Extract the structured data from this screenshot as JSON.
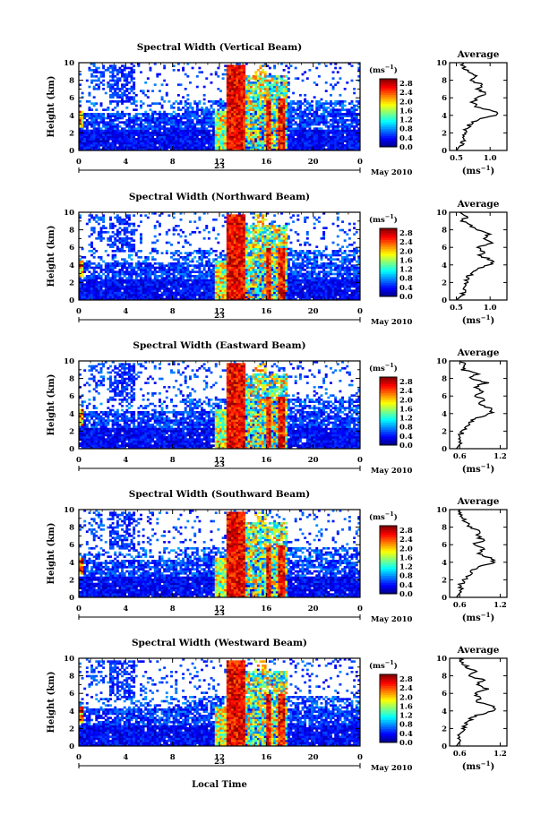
{
  "chart_data": [
    {
      "type": "heatmap",
      "title": "Spectral Width (Vertical Beam)",
      "ylabel": "Height (km)",
      "xticks": [
        "0",
        "4",
        "8",
        "12",
        "16",
        "20",
        "0"
      ],
      "date_label": "23",
      "month_label": "May 2010",
      "xlim": [
        0,
        24
      ],
      "ylim": [
        0,
        10
      ],
      "yticks": [
        "0",
        "2",
        "4",
        "6",
        "8",
        "10"
      ],
      "colorbar": {
        "unit": "(ms",
        "unit_exp": "−1",
        "unit_close": ")",
        "range": [
          0,
          3.0
        ],
        "labels": [
          "0.0",
          "0.4",
          "0.8",
          "1.2",
          "1.6",
          "2.0",
          "2.4",
          "2.8"
        ]
      },
      "profile": {
        "title": "Average",
        "xlabel": "(ms",
        "xlabel_exp": "−1",
        "xlabel_close": ")",
        "xticks": [
          "0.5",
          "1.0"
        ],
        "xlim": [
          0.4,
          1.25
        ],
        "height_km": [
          0,
          0.5,
          1,
          1.5,
          2,
          2.5,
          3,
          3.5,
          4,
          4.5,
          5,
          5.5,
          6,
          6.5,
          7,
          7.5,
          8,
          8.5,
          9,
          9.5,
          10
        ],
        "width_ms": [
          0.5,
          0.55,
          0.6,
          0.6,
          0.62,
          0.66,
          0.7,
          0.8,
          1.1,
          1.05,
          0.8,
          0.75,
          0.8,
          0.95,
          0.8,
          0.9,
          0.7,
          0.8,
          0.65,
          0.6,
          0.6
        ]
      }
    },
    {
      "type": "heatmap",
      "title": "Spectral Width (Northward Beam)",
      "ylabel": "Height (km)",
      "xticks": [
        "0",
        "4",
        "8",
        "12",
        "16",
        "20",
        "0"
      ],
      "date_label": "23",
      "month_label": "May 2010",
      "xlim": [
        0,
        24
      ],
      "ylim": [
        0,
        10
      ],
      "yticks": [
        "0",
        "2",
        "4",
        "6",
        "8",
        "10"
      ],
      "colorbar": {
        "unit": "(ms",
        "unit_exp": "−1",
        "unit_close": ")",
        "range": [
          0,
          3.0
        ],
        "labels": [
          "0.0",
          "0.4",
          "0.8",
          "1.2",
          "1.6",
          "2.0",
          "2.4",
          "2.8"
        ]
      },
      "profile": {
        "title": "Average",
        "xlabel": "(ms",
        "xlabel_exp": "−1",
        "xlabel_close": ")",
        "xticks": [
          "0.5",
          "1.0"
        ],
        "xlim": [
          0.4,
          1.25
        ],
        "height_km": [
          0,
          0.5,
          1,
          1.5,
          2,
          2.5,
          3,
          3.5,
          4,
          4.5,
          5,
          5.5,
          6,
          6.5,
          7,
          7.5,
          8,
          8.5,
          9,
          9.5,
          10
        ],
        "width_ms": [
          0.5,
          0.58,
          0.62,
          0.6,
          0.65,
          0.66,
          0.72,
          0.8,
          1.0,
          1.05,
          0.85,
          0.9,
          0.8,
          1.0,
          0.9,
          1.0,
          0.8,
          0.7,
          0.6,
          0.65,
          0.55
        ]
      }
    },
    {
      "type": "heatmap",
      "title": "Spectral Width (Eastward Beam)",
      "ylabel": "Height (km)",
      "xticks": [
        "0",
        "4",
        "8",
        "12",
        "16",
        "20",
        "0"
      ],
      "date_label": "23",
      "month_label": "May 2010",
      "xlim": [
        0,
        24
      ],
      "ylim": [
        0,
        10
      ],
      "yticks": [
        "0",
        "2",
        "4",
        "6",
        "8",
        "10"
      ],
      "colorbar": {
        "unit": "(ms",
        "unit_exp": "−1",
        "unit_close": ")",
        "range": [
          0,
          3.0
        ],
        "labels": [
          "0.0",
          "0.4",
          "0.8",
          "1.2",
          "1.6",
          "2.0",
          "2.4",
          "2.8"
        ]
      },
      "profile": {
        "title": "Average",
        "xlabel": "(ms",
        "xlabel_exp": "−1",
        "xlabel_close": ")",
        "xticks": [
          "0.6",
          "1.2"
        ],
        "xlim": [
          0.45,
          1.3
        ],
        "height_km": [
          0,
          0.5,
          1,
          1.5,
          2,
          2.5,
          3,
          3.5,
          4,
          4.5,
          5,
          5.5,
          6,
          6.5,
          7,
          7.5,
          8,
          8.5,
          9,
          9.5,
          10
        ],
        "width_ms": [
          0.55,
          0.6,
          0.62,
          0.6,
          0.65,
          0.7,
          0.75,
          0.85,
          1.05,
          1.1,
          0.9,
          0.95,
          0.85,
          0.95,
          0.8,
          1.0,
          0.75,
          0.85,
          0.65,
          0.7,
          0.6
        ]
      }
    },
    {
      "type": "heatmap",
      "title": "Spectral Width (Southward Beam)",
      "ylabel": "Height (km)",
      "xticks": [
        "0",
        "4",
        "8",
        "12",
        "16",
        "20",
        "0"
      ],
      "date_label": "23",
      "month_label": "May 2010",
      "xlim": [
        0,
        24
      ],
      "ylim": [
        0,
        10
      ],
      "yticks": [
        "0",
        "2",
        "4",
        "6",
        "8",
        "10"
      ],
      "colorbar": {
        "unit": "(ms",
        "unit_exp": "−1",
        "unit_close": ")",
        "range": [
          0,
          3.0
        ],
        "labels": [
          "0.0",
          "0.4",
          "0.8",
          "1.2",
          "1.6",
          "2.0",
          "2.4",
          "2.8"
        ]
      },
      "profile": {
        "title": "Average",
        "xlabel": "(ms",
        "xlabel_exp": "−1",
        "xlabel_close": ")",
        "xticks": [
          "0.6",
          "1.2"
        ],
        "xlim": [
          0.45,
          1.3
        ],
        "height_km": [
          0,
          0.5,
          1,
          1.5,
          2,
          2.5,
          3,
          3.5,
          4,
          4.5,
          5,
          5.5,
          6,
          6.5,
          7,
          7.5,
          8,
          8.5,
          9,
          9.5,
          10
        ],
        "width_ms": [
          0.55,
          0.6,
          0.62,
          0.62,
          0.66,
          0.72,
          0.78,
          0.9,
          1.1,
          1.05,
          0.85,
          0.95,
          0.8,
          0.95,
          0.85,
          0.9,
          0.75,
          0.7,
          0.65,
          0.6,
          0.6
        ]
      }
    },
    {
      "type": "heatmap",
      "title": "Spectral Width (Westward Beam)",
      "ylabel": "Height (km)",
      "xticks": [
        "0",
        "4",
        "8",
        "12",
        "16",
        "20",
        "0"
      ],
      "date_label": "23",
      "month_label": "May 2010",
      "xlim": [
        0,
        24
      ],
      "ylim": [
        0,
        10
      ],
      "yticks": [
        "0",
        "2",
        "4",
        "6",
        "8",
        "10"
      ],
      "colorbar": {
        "unit": "(ms",
        "unit_exp": "−1",
        "unit_close": ")",
        "range": [
          0,
          3.0
        ],
        "labels": [
          "0.0",
          "0.4",
          "0.8",
          "1.2",
          "1.6",
          "2.0",
          "2.4",
          "2.8"
        ]
      },
      "profile": {
        "title": "Average",
        "xlabel": "(ms",
        "xlabel_exp": "−1",
        "xlabel_close": ")",
        "xticks": [
          "0.6",
          "1.2"
        ],
        "xlim": [
          0.45,
          1.3
        ],
        "height_km": [
          0,
          0.5,
          1,
          1.5,
          2,
          2.5,
          3,
          3.5,
          4,
          4.5,
          5,
          5.5,
          6,
          6.5,
          7,
          7.5,
          8,
          8.5,
          9,
          9.5,
          10
        ],
        "width_ms": [
          0.55,
          0.6,
          0.6,
          0.62,
          0.66,
          0.7,
          0.75,
          0.85,
          1.1,
          1.1,
          0.85,
          0.9,
          0.8,
          1.0,
          0.85,
          0.95,
          0.75,
          0.85,
          0.7,
          0.65,
          0.6
        ]
      }
    }
  ],
  "xlabel": "Local Time"
}
